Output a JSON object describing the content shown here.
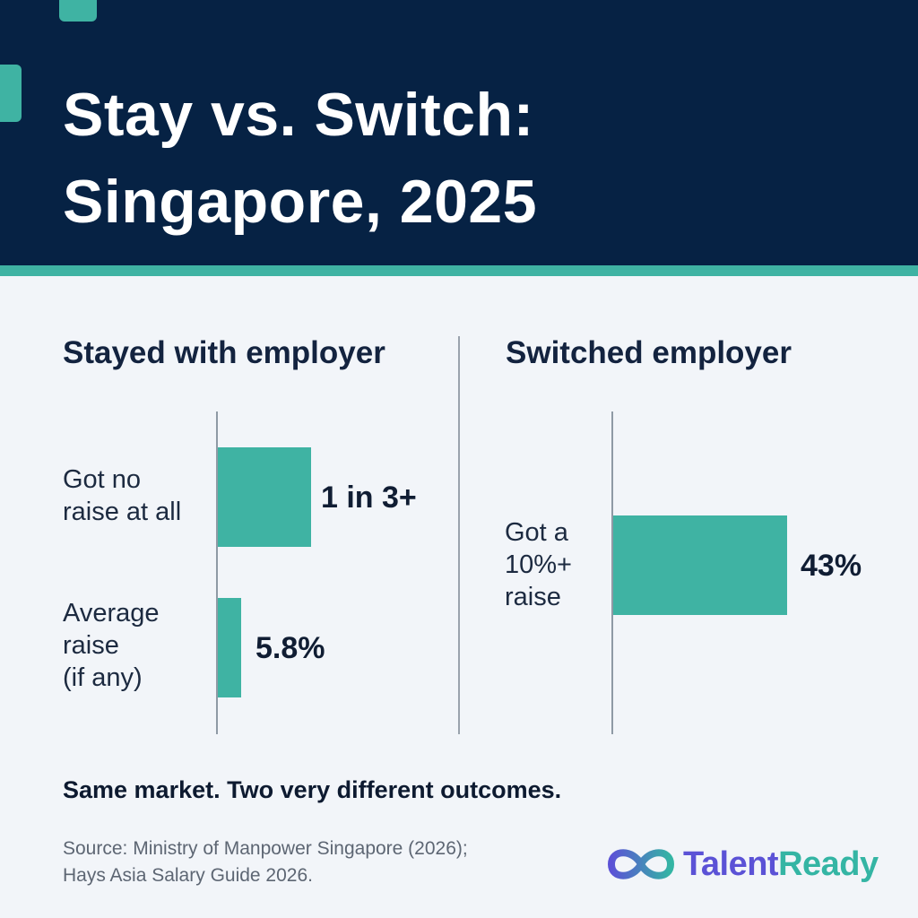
{
  "header": {
    "title_line1": "Stay vs. Switch:",
    "title_line2": "Singapore, 2025",
    "background": "#062244",
    "accent": "#3fb3a3"
  },
  "chart_data": [
    {
      "type": "bar",
      "orientation": "horizontal",
      "title": "Stayed with employer",
      "rows": [
        {
          "label_lines": [
            "Got no",
            "raise at all"
          ],
          "value_label": "1 in 3+",
          "value": 0.33
        },
        {
          "label_lines": [
            "Average",
            "raise",
            "(if any)"
          ],
          "value_label": "5.8%",
          "value": 5.8
        }
      ],
      "bar_color": "#3fb3a3"
    },
    {
      "type": "bar",
      "orientation": "horizontal",
      "title": "Switched employer",
      "rows": [
        {
          "label_lines": [
            "Got a",
            "10%+",
            "raise"
          ],
          "value_label": "43%",
          "value": 43
        }
      ],
      "bar_color": "#3fb3a3"
    }
  ],
  "tagline": "Same market. Two very different outcomes.",
  "source": {
    "line1": "Source: Ministry of Manpower Singapore (2026);",
    "line2": "Hays Asia Salary Guide 2026."
  },
  "brand": {
    "name_part1": "Talent",
    "name_part2": "Ready",
    "logo_icon": "infinity-loop-icon",
    "color1": "#5b52d6",
    "color2": "#34b5a4"
  }
}
